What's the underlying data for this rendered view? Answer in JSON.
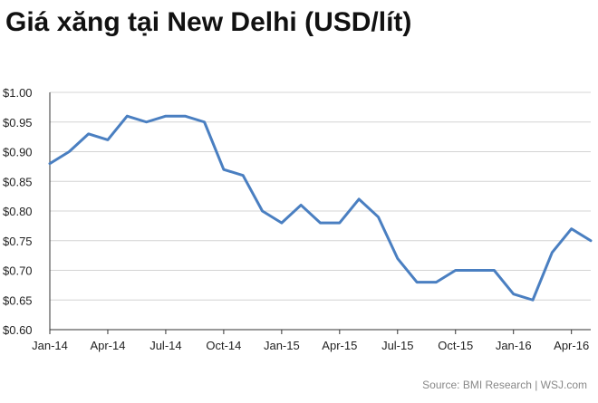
{
  "title": "Giá xăng tại New Delhi (USD/lít)",
  "source": "Source: BMI Research  |  WSJ.com",
  "colors": {
    "line": "#4a7fc1",
    "grid": "#d4d4d4",
    "axis": "#333333"
  },
  "chart_data": {
    "type": "line",
    "title": "Giá xăng tại New Delhi (USD/lít)",
    "xlabel": "",
    "ylabel": "",
    "ylim": [
      0.6,
      1.0
    ],
    "yticks": [
      "$0.60",
      "$0.65",
      "$0.70",
      "$0.75",
      "$0.80",
      "$0.85",
      "$0.90",
      "$0.95",
      "$1.00"
    ],
    "xticks": [
      "Jan-14",
      "Apr-14",
      "Jul-14",
      "Oct-14",
      "Jan-15",
      "Apr-15",
      "Jul-15",
      "Oct-15",
      "Jan-16",
      "Apr-16"
    ],
    "grid": true,
    "legend": "none",
    "x": [
      "Jan-14",
      "Feb-14",
      "Mar-14",
      "Apr-14",
      "May-14",
      "Jun-14",
      "Jul-14",
      "Aug-14",
      "Sep-14",
      "Oct-14",
      "Nov-14",
      "Dec-14",
      "Jan-15",
      "Feb-15",
      "Mar-15",
      "Apr-15",
      "May-15",
      "Jun-15",
      "Jul-15",
      "Aug-15",
      "Sep-15",
      "Oct-15",
      "Nov-15",
      "Dec-15",
      "Jan-16",
      "Feb-16",
      "Mar-16",
      "Apr-16",
      "May-16"
    ],
    "values": [
      0.88,
      0.9,
      0.93,
      0.92,
      0.96,
      0.95,
      0.96,
      0.96,
      0.95,
      0.87,
      0.86,
      0.8,
      0.78,
      0.81,
      0.78,
      0.78,
      0.82,
      0.79,
      0.72,
      0.68,
      0.68,
      0.7,
      0.7,
      0.7,
      0.66,
      0.65,
      0.73,
      0.77,
      0.75
    ]
  }
}
